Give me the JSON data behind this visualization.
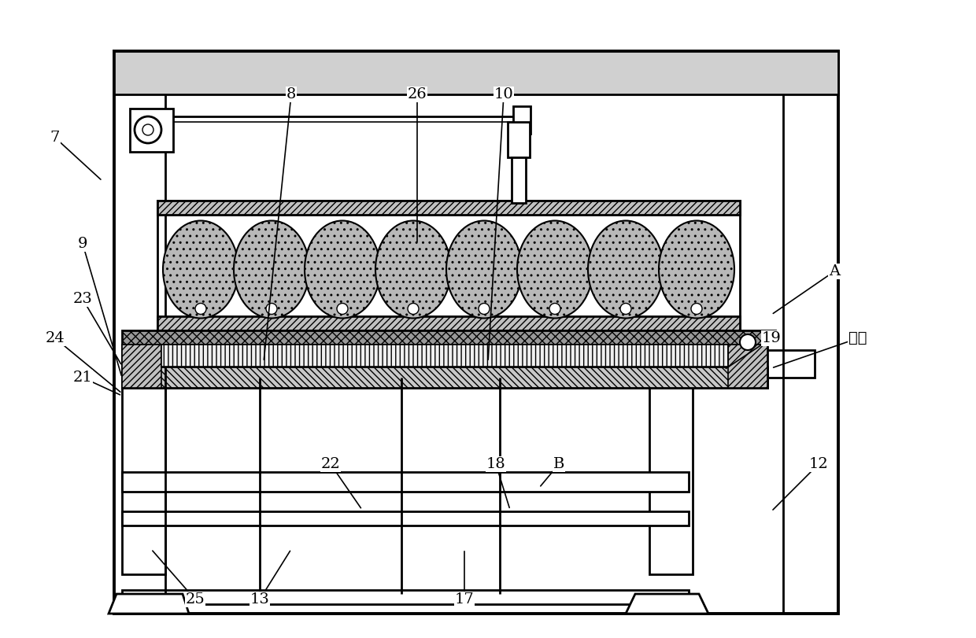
{
  "bg": "#ffffff",
  "lc": "#000000",
  "annotations": [
    [
      "25",
      248,
      762,
      192,
      698
    ],
    [
      "13",
      330,
      762,
      370,
      698
    ],
    [
      "17",
      590,
      762,
      590,
      698
    ],
    [
      "12",
      1040,
      590,
      980,
      650
    ],
    [
      "18",
      630,
      590,
      648,
      648
    ],
    [
      "B",
      710,
      590,
      685,
      620
    ],
    [
      "22",
      420,
      590,
      460,
      648
    ],
    [
      "19",
      980,
      430,
      920,
      470
    ],
    [
      "24",
      70,
      430,
      155,
      500
    ],
    [
      "23",
      105,
      380,
      155,
      465
    ],
    [
      "21",
      105,
      480,
      155,
      503
    ],
    [
      "9",
      105,
      310,
      155,
      480
    ],
    [
      "7",
      70,
      175,
      130,
      230
    ],
    [
      "8",
      370,
      120,
      335,
      460
    ],
    [
      "26",
      530,
      120,
      530,
      310
    ],
    [
      "10",
      640,
      120,
      620,
      460
    ],
    [
      "A",
      1060,
      345,
      980,
      400
    ],
    [
      "薤片",
      1090,
      430,
      980,
      468
    ]
  ],
  "font_size": 14
}
